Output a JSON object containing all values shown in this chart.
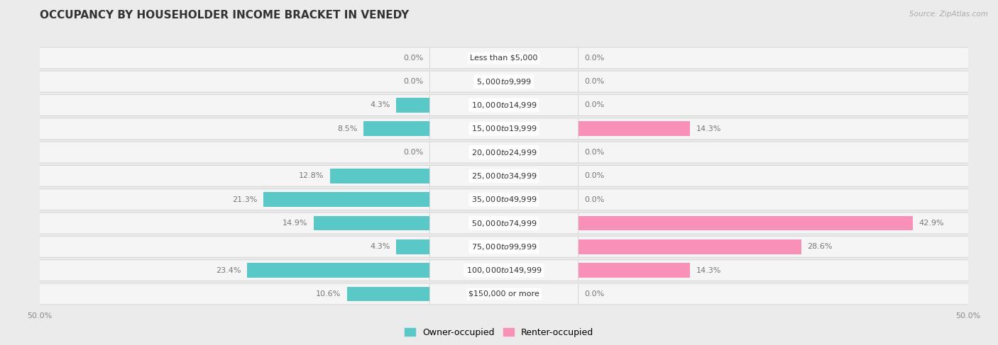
{
  "title": "OCCUPANCY BY HOUSEHOLDER INCOME BRACKET IN VENEDY",
  "source": "Source: ZipAtlas.com",
  "categories": [
    "Less than $5,000",
    "$5,000 to $9,999",
    "$10,000 to $14,999",
    "$15,000 to $19,999",
    "$20,000 to $24,999",
    "$25,000 to $34,999",
    "$35,000 to $49,999",
    "$50,000 to $74,999",
    "$75,000 to $99,999",
    "$100,000 to $149,999",
    "$150,000 or more"
  ],
  "owner_values": [
    0.0,
    0.0,
    4.3,
    8.5,
    0.0,
    12.8,
    21.3,
    14.9,
    4.3,
    23.4,
    10.6
  ],
  "renter_values": [
    0.0,
    0.0,
    0.0,
    14.3,
    0.0,
    0.0,
    0.0,
    42.9,
    28.6,
    14.3,
    0.0
  ],
  "owner_color": "#5BC8C8",
  "renter_color": "#F890B8",
  "owner_label": "Owner-occupied",
  "renter_label": "Renter-occupied",
  "background_color": "#ebebeb",
  "row_bg_color": "#f5f5f5",
  "row_border_color": "#d8d8d8",
  "title_fontsize": 11,
  "axis_max": 50.0,
  "bar_height": 0.62,
  "label_fontsize": 8,
  "value_fontsize": 8,
  "legend_fontsize": 9
}
